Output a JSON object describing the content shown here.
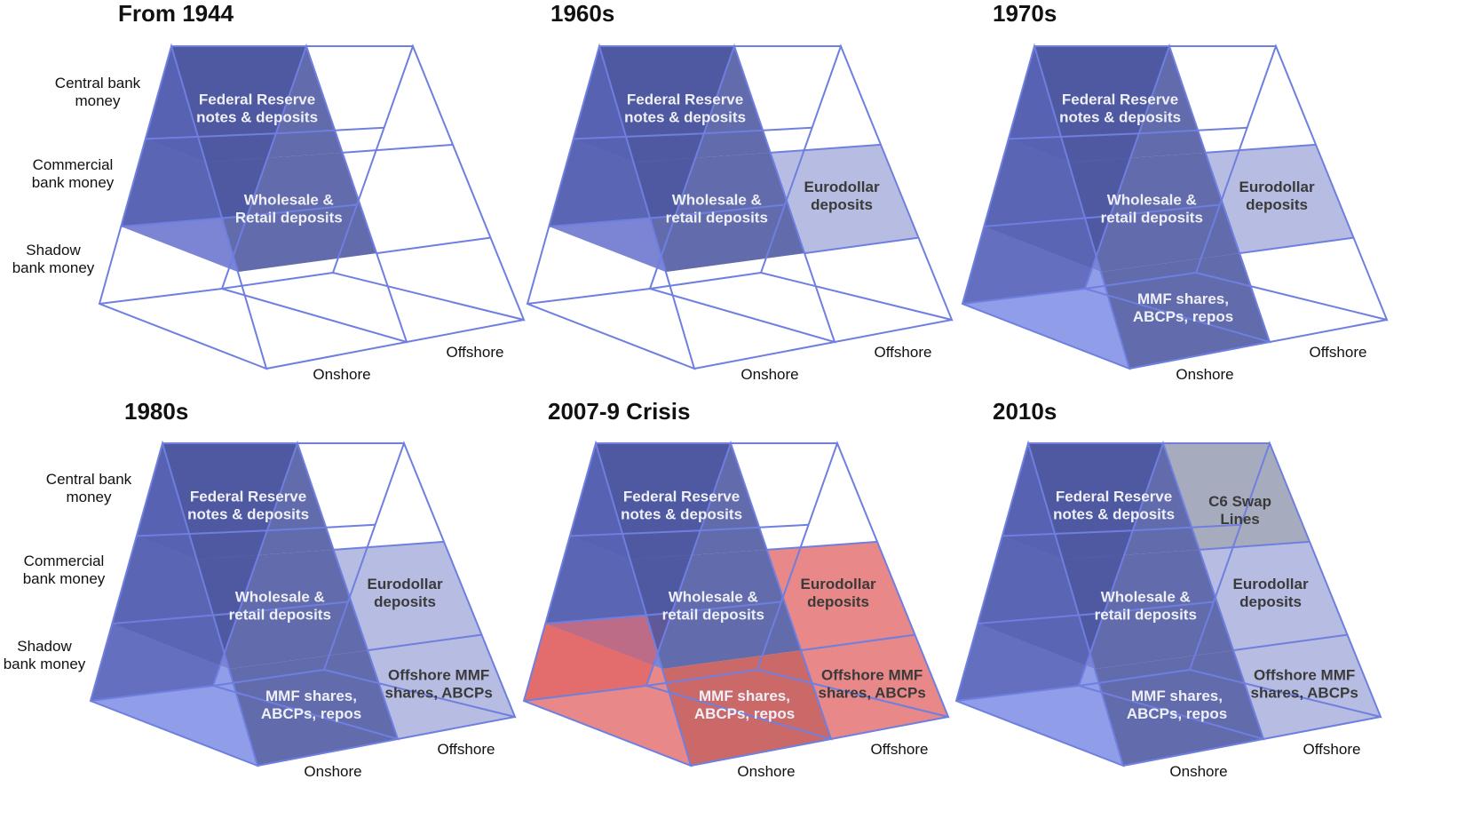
{
  "colors": {
    "blue_dark": "#3f4a9a",
    "blue_mid": "#5a67c8",
    "blue_light": "#7d8de6",
    "grey": "#8a8fa8",
    "grey_light": "#aab2dd",
    "red": "#e06060",
    "wire": "#6f7fe0"
  },
  "row_labels": {
    "central": [
      "Central bank",
      "money"
    ],
    "commercial": [
      "Commercial",
      "bank money"
    ],
    "shadow": [
      "Shadow",
      "bank money"
    ]
  },
  "axis_labels": {
    "onshore": "Onshore",
    "offshore": "Offshore"
  },
  "panels": [
    {
      "title": "From 1944",
      "cells": {
        "fed": [
          "Federal Reserve",
          "notes & deposits"
        ],
        "wholesale": [
          "Wholesale &",
          "Retail deposits"
        ]
      }
    },
    {
      "title": "1960s",
      "cells": {
        "fed": [
          "Federal Reserve",
          "notes & deposits"
        ],
        "wholesale": [
          "Wholesale &",
          "retail deposits"
        ],
        "euro": [
          "Eurodollar",
          "deposits"
        ]
      }
    },
    {
      "title": "1970s",
      "cells": {
        "fed": [
          "Federal Reserve",
          "notes & deposits"
        ],
        "wholesale": [
          "Wholesale &",
          "retail deposits"
        ],
        "euro": [
          "Eurodollar",
          "deposits"
        ],
        "mmf": [
          "MMF shares,",
          "ABCPs, repos"
        ]
      }
    },
    {
      "title": "1980s",
      "cells": {
        "fed": [
          "Federal Reserve",
          "notes & deposits"
        ],
        "wholesale": [
          "Wholesale &",
          "retail deposits"
        ],
        "euro": [
          "Eurodollar",
          "deposits"
        ],
        "mmf": [
          "MMF shares,",
          "ABCPs, repos"
        ],
        "offmmf": [
          "Offshore MMF",
          "shares, ABCPs"
        ]
      }
    },
    {
      "title": "2007-9 Crisis",
      "cells": {
        "fed": [
          "Federal Reserve",
          "notes & deposits"
        ],
        "wholesale": [
          "Wholesale &",
          "retail deposits"
        ],
        "euro": [
          "Eurodollar",
          "deposits"
        ],
        "mmf": [
          "MMF shares,",
          "ABCPs, repos"
        ],
        "offmmf": [
          "Offshore MMF",
          "shares, ABCPs"
        ]
      }
    },
    {
      "title": "2010s",
      "cells": {
        "fed": [
          "Federal Reserve",
          "notes & deposits"
        ],
        "wholesale": [
          "Wholesale &",
          "retail deposits"
        ],
        "euro": [
          "Eurodollar",
          "deposits"
        ],
        "mmf": [
          "MMF shares,",
          "ABCPs, repos"
        ],
        "offmmf": [
          "Offshore MMF",
          "shares, ABCPs"
        ],
        "swap": [
          "C6 Swap",
          "Lines"
        ]
      }
    }
  ]
}
